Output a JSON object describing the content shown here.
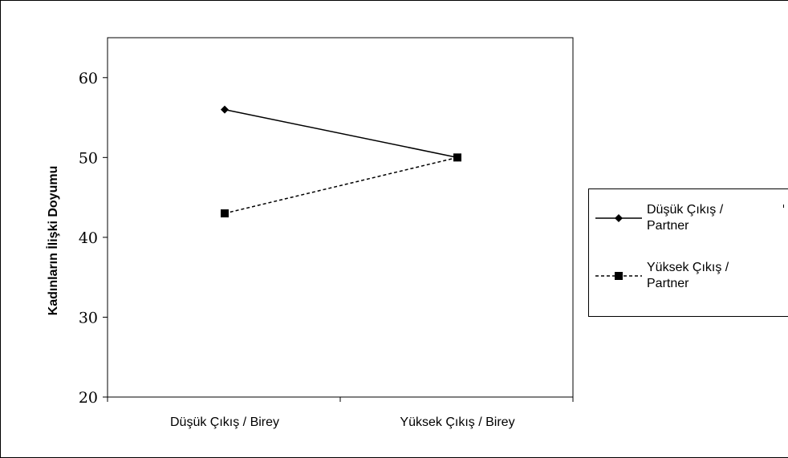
{
  "chart_data": {
    "type": "line",
    "ylabel": "Kadınların İlişki Doyumu",
    "xlabel": "",
    "ylim": [
      20,
      65
    ],
    "yticks": [
      "20",
      "30",
      "40",
      "50",
      "60"
    ],
    "categories": [
      "Düşük Çıkış /  Birey",
      "Yüksek Çıkış / Birey"
    ],
    "series": [
      {
        "name": "Düşük Çıkış / Partner",
        "values": [
          56,
          50
        ],
        "marker": "diamond",
        "dash": "solid"
      },
      {
        "name": "Yüksek Çıkış / Partner",
        "values": [
          43,
          50
        ],
        "marker": "square",
        "dash": "dashed"
      }
    ],
    "legend": {
      "position": "right"
    },
    "grid": false
  },
  "legend_entries": [
    {
      "line1": "Düşük Çıkış /",
      "line2": "Partner"
    },
    {
      "line1": "Yüksek Çıkış /",
      "line2": "Partner"
    }
  ]
}
